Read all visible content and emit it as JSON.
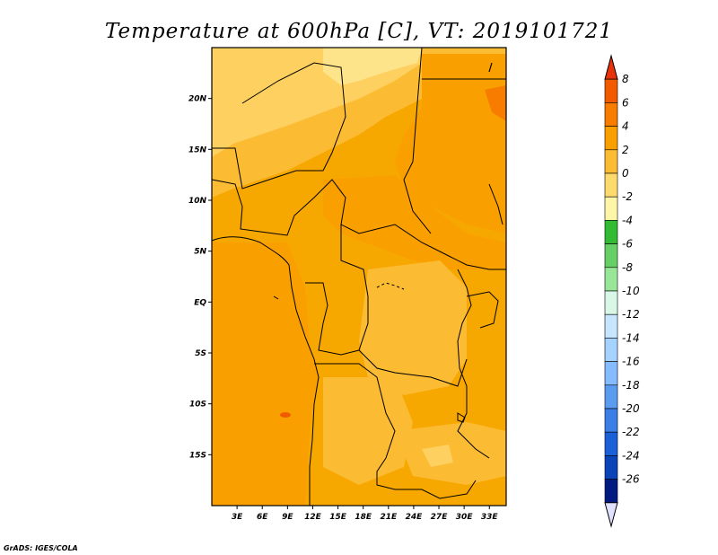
{
  "title": "Temperature at 600hPa [C], VT: 2019101721",
  "credit": "GrADS: IGES/COLA",
  "map": {
    "lon_range": [
      0,
      35
    ],
    "lat_range": [
      -20,
      25
    ],
    "lon_ticks": [
      "3E",
      "6E",
      "9E",
      "12E",
      "15E",
      "18E",
      "21E",
      "24E",
      "27E",
      "30E",
      "33E"
    ],
    "lat_ticks": [
      "20N",
      "15N",
      "10N",
      "5N",
      "EQ",
      "5S",
      "10S",
      "15S"
    ],
    "background_color": "#f7a800"
  },
  "colorbar": {
    "labels": [
      "8",
      "6",
      "4",
      "2",
      "0",
      "-2",
      "-4",
      "-6",
      "-8",
      "-10",
      "-12",
      "-14",
      "-16",
      "-18",
      "-20",
      "-22",
      "-24",
      "-26"
    ],
    "colors_top_to_bottom": [
      "#e8320a",
      "#f25a00",
      "#f77c00",
      "#f9a000",
      "#fbbb33",
      "#fdda6e",
      "#fff5a8",
      "#33bb33",
      "#66d066",
      "#99e699",
      "#d8f7e6",
      "#c6e6ff",
      "#a6d2ff",
      "#86bbff",
      "#5b9cf0",
      "#3a7ee6",
      "#1b60d6",
      "#0a44b8",
      "#001a80",
      "#e0e0ff"
    ]
  }
}
